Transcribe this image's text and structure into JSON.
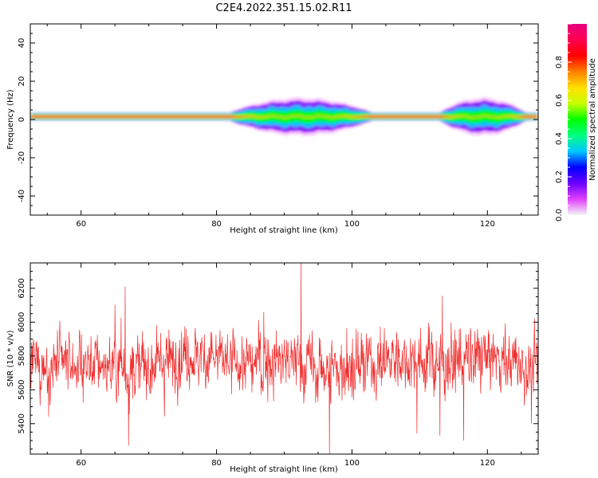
{
  "figure": {
    "title": "C2E4.2022.351.15.02.R11"
  },
  "chart_data": [
    {
      "type": "heatmap",
      "name": "spectrogram",
      "xlabel": "Height of straight line (km)",
      "ylabel": "Frequency (Hz)",
      "xlim": [
        52.5,
        127.5
      ],
      "ylim": [
        -50,
        50
      ],
      "xticks": [
        60,
        80,
        100,
        120
      ],
      "yticks": [
        -40,
        -20,
        0,
        20,
        40
      ],
      "signal": {
        "center_frequency_hz": 1.5,
        "quiet_band_halfwidth_hz": 1.5,
        "spread_regions_km": [
          [
            82,
            106
          ],
          [
            113,
            127.5
          ]
        ],
        "spread_peak_halfwidth_hz": 5
      },
      "colorbar": {
        "label": "Normalized spectral amplitude",
        "range": [
          0.0,
          1.0
        ],
        "ticks": [
          0.0,
          0.2,
          0.4,
          0.6,
          0.8
        ],
        "tick_labels": [
          "0.0",
          "0.2",
          "0.4",
          "0.6",
          "0.8"
        ],
        "colors": [
          "#f5f5f5",
          "#e040fb",
          "#6a00ff",
          "#0000ff",
          "#00c8ff",
          "#00ff80",
          "#00ff00",
          "#c8ff00",
          "#ffe000",
          "#ff8000",
          "#ff0000",
          "#ff0050",
          "#e6007e"
        ]
      }
    },
    {
      "type": "line",
      "name": "snr",
      "xlabel": "Height of straight line (km)",
      "ylabel": "SNR (10 * v/v)",
      "xlim": [
        52.5,
        127.5
      ],
      "ylim": [
        5220,
        6350
      ],
      "xticks": [
        60,
        80,
        100,
        120
      ],
      "yticks": [
        5400,
        5600,
        5800,
        6000,
        6200
      ],
      "color": "#f03030",
      "series_summary": {
        "samples": 1500,
        "mean": 5760,
        "typical_min": 5450,
        "typical_max": 6050,
        "notable_points": [
          {
            "x": 66.5,
            "y": 6210
          },
          {
            "x": 67.0,
            "y": 5270
          },
          {
            "x": 92.5,
            "y": 6350
          },
          {
            "x": 96.7,
            "y": 5220
          },
          {
            "x": 113.0,
            "y": 5330
          },
          {
            "x": 116.5,
            "y": 5300
          },
          {
            "x": 126.5,
            "y": 5400
          }
        ]
      }
    }
  ]
}
